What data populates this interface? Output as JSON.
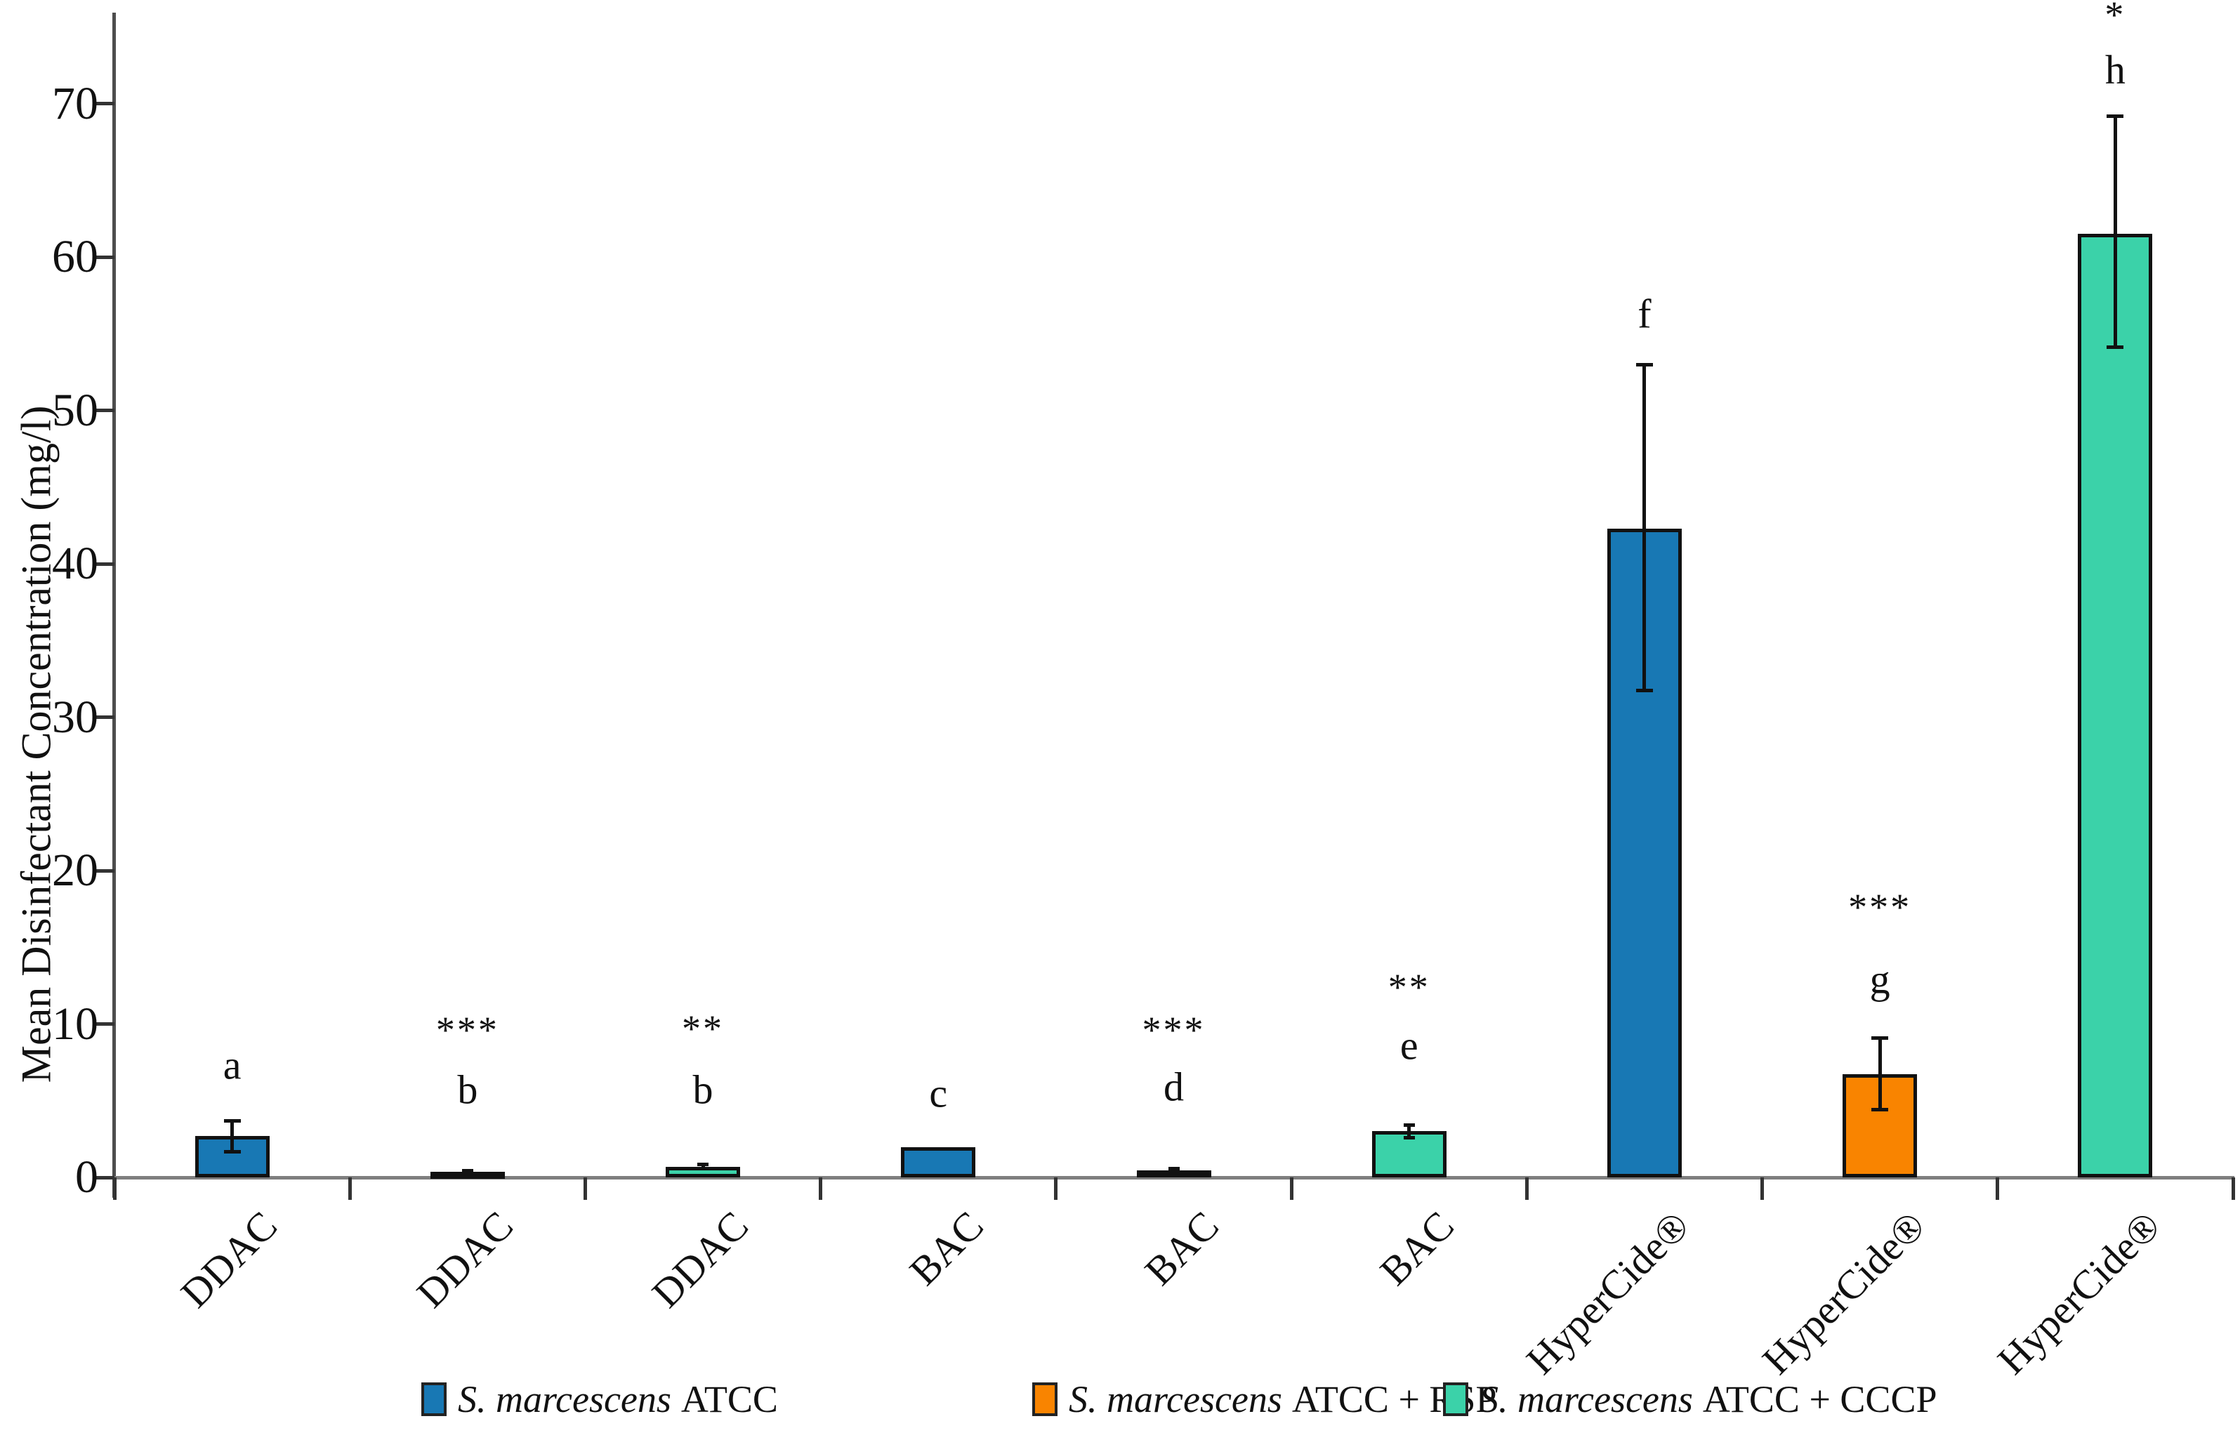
{
  "chart_data": {
    "type": "bar",
    "title": "",
    "xlabel": "",
    "ylabel": "Mean Disinfectant Concentration (mg/l)",
    "ylim": [
      0,
      75
    ],
    "yticks": [
      0,
      10,
      20,
      30,
      40,
      50,
      60,
      70
    ],
    "grid": false,
    "legend_position": "bottom",
    "categories": [
      "DDAC",
      "DDAC",
      "DDAC",
      "BAC",
      "BAC",
      "BAC",
      "HyperCide®",
      "HyperCide®",
      "HyperCide®"
    ],
    "series_names": [
      "S. marcescens ATCC",
      "S. marcescens ATCC + RSP",
      "S. marcescens ATCC + CCCP"
    ],
    "colors": [
      "#1878B4",
      "#F98400",
      "#3BD2A9"
    ],
    "bars": [
      {
        "category": "DDAC",
        "series": "S. marcescens ATCC",
        "value": 2.7,
        "err_low": 1.65,
        "err_high": 3.7,
        "letter": "a",
        "letter_y": 7.3,
        "stars": "",
        "stars_y": null
      },
      {
        "category": "DDAC",
        "series": "S. marcescens ATCC + RSP",
        "value": 0.35,
        "err_low": 0.22,
        "err_high": 0.48,
        "letter": "b",
        "letter_y": 5.7,
        "stars": "***",
        "stars_y": 9.6
      },
      {
        "category": "DDAC",
        "series": "S. marcescens ATCC + CCCP",
        "value": 0.7,
        "err_low": 0.55,
        "err_high": 0.85,
        "letter": "b",
        "letter_y": 5.7,
        "stars": "**",
        "stars_y": 9.7
      },
      {
        "category": "BAC",
        "series": "S. marcescens ATCC",
        "value": 1.95,
        "err_low": null,
        "err_high": null,
        "letter": "c",
        "letter_y": 5.5,
        "stars": "",
        "stars_y": null
      },
      {
        "category": "BAC",
        "series": "S. marcescens ATCC + RSP",
        "value": 0.45,
        "err_low": 0.32,
        "err_high": 0.58,
        "letter": "d",
        "letter_y": 5.9,
        "stars": "***",
        "stars_y": 9.6
      },
      {
        "category": "BAC",
        "series": "S. marcescens ATCC + CCCP",
        "value": 3.0,
        "err_low": 2.55,
        "err_high": 3.45,
        "letter": "e",
        "letter_y": 8.6,
        "stars": "**",
        "stars_y": 12.4
      },
      {
        "category": "HyperCide®",
        "series": "S. marcescens ATCC",
        "value": 42.3,
        "err_low": 31.7,
        "err_high": 53.0,
        "letter": "f",
        "letter_y": 56.3,
        "stars": "",
        "stars_y": null
      },
      {
        "category": "HyperCide®",
        "series": "S. marcescens ATCC + RSP",
        "value": 6.75,
        "err_low": 4.4,
        "err_high": 9.1,
        "letter": "g",
        "letter_y": 12.9,
        "stars": "***",
        "stars_y": 17.6
      },
      {
        "category": "HyperCide®",
        "series": "S. marcescens ATCC + CCCP",
        "value": 61.5,
        "err_low": 54.1,
        "err_high": 69.2,
        "letter": "h",
        "letter_y": 72.2,
        "stars": "*",
        "stars_y": 75.8
      }
    ],
    "legend": [
      {
        "species": "S. marcescens",
        "rest": "ATCC",
        "color": "#1878B4"
      },
      {
        "species": "S. marcescens",
        "rest": "ATCC + RSP",
        "color": "#F98400"
      },
      {
        "species": "S. marcescens",
        "rest": "ATCC + CCCP",
        "color": "#3BD2A9"
      }
    ]
  }
}
